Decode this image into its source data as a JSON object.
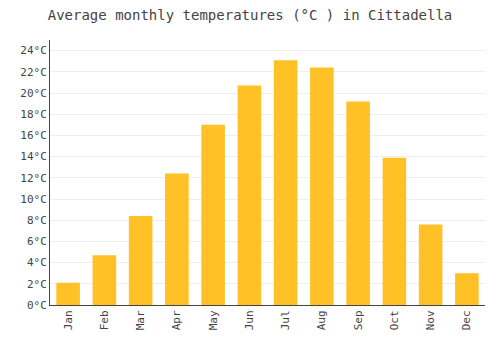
{
  "chart_data": {
    "type": "bar",
    "title": "Average monthly temperatures (°C ) in Cittadella",
    "categories": [
      "Jan",
      "Feb",
      "Mar",
      "Apr",
      "May",
      "Jun",
      "Jul",
      "Aug",
      "Sep",
      "Oct",
      "Nov",
      "Dec"
    ],
    "values": [
      2.1,
      4.7,
      8.4,
      12.4,
      17.0,
      20.7,
      23.1,
      22.4,
      19.2,
      13.9,
      7.6,
      3.0
    ],
    "color": "#FFC125",
    "ylim": [
      0,
      25
    ],
    "yticks": [
      {
        "value": 0,
        "label": "0°C"
      },
      {
        "value": 2,
        "label": "2°C"
      },
      {
        "value": 4,
        "label": "4°C"
      },
      {
        "value": 6,
        "label": "6°C"
      },
      {
        "value": 8,
        "label": "8°C"
      },
      {
        "value": 10,
        "label": "10°C"
      },
      {
        "value": 12,
        "label": "12°C"
      },
      {
        "value": 14,
        "label": "14°C"
      },
      {
        "value": 16,
        "label": "16°C"
      },
      {
        "value": 18,
        "label": "18°C"
      },
      {
        "value": 20,
        "label": "20°C"
      },
      {
        "value": 22,
        "label": "22°C"
      },
      {
        "value": 24,
        "label": "24°C"
      }
    ],
    "grid": true
  }
}
